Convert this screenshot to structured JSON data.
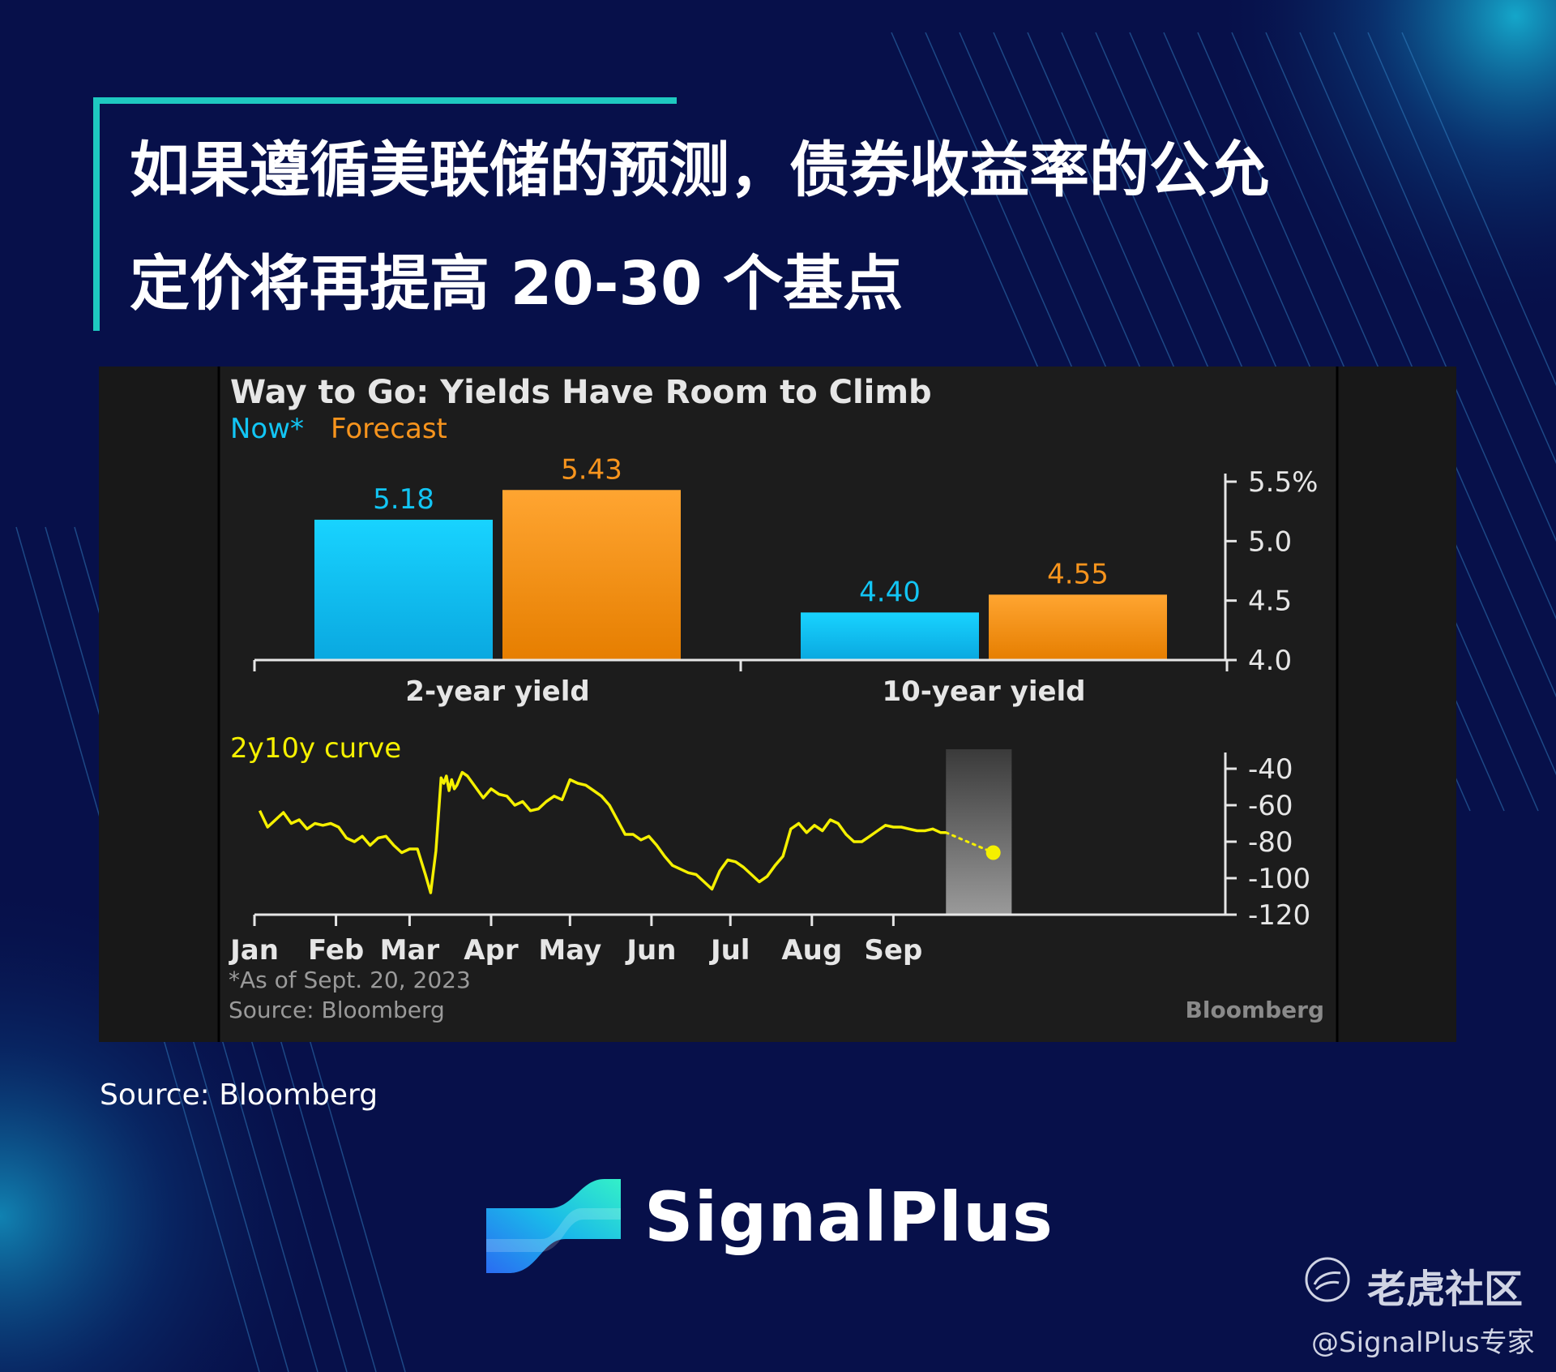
{
  "headline": {
    "line1": "如果遵循美联储的预测，债券收益率的公允",
    "line2": "定价将再提高 20-30 个基点"
  },
  "chart_data": [
    {
      "type": "bar",
      "title": "Way to Go: Yields Have Room to Climb",
      "categories": [
        "2-year yield",
        "10-year yield"
      ],
      "series": [
        {
          "name": "Now*",
          "values": [
            5.18,
            4.4
          ],
          "color": "#12c5f4"
        },
        {
          "name": "Forecast",
          "values": [
            5.43,
            4.55
          ],
          "color": "#f7941d"
        }
      ],
      "value_labels": [
        [
          "5.18",
          "4.40"
        ],
        [
          "5.43",
          "4.55"
        ]
      ],
      "ylim": [
        4.0,
        5.5
      ],
      "yticks": [
        4.0,
        4.5,
        5.0,
        5.5
      ],
      "ytick_labels": [
        "4.0",
        "4.5",
        "5.0",
        "5.5%"
      ],
      "axis_side": "right"
    },
    {
      "type": "line",
      "title": "2y10y curve",
      "color": "#f5f000",
      "xlim_days": [
        0,
        365
      ],
      "ylim": [
        -120,
        -40
      ],
      "yticks": [
        -40,
        -60,
        -80,
        -100,
        -120
      ],
      "ytick_labels": [
        "-40",
        "-60",
        "-80",
        "-100",
        "-120"
      ],
      "month_labels": [
        "Jan",
        "Feb",
        "Mar",
        "Apr",
        "May",
        "Jun",
        "Jul",
        "Aug",
        "Sep"
      ],
      "month_days": [
        0,
        31,
        59,
        90,
        120,
        151,
        181,
        212,
        243
      ],
      "series": [
        {
          "x_day": [
            2,
            5,
            8,
            11,
            14,
            17,
            20,
            23,
            26,
            29,
            32,
            35,
            38,
            41,
            44,
            47,
            50,
            53,
            56,
            59,
            62,
            65,
            67,
            69,
            71,
            72,
            73,
            74,
            75,
            76,
            77,
            79,
            81,
            83,
            85,
            87,
            90,
            93,
            96,
            99,
            102,
            105,
            108,
            111,
            114,
            117,
            120,
            123,
            126,
            129,
            132,
            135,
            138,
            141,
            144,
            147,
            150,
            153,
            156,
            159,
            162,
            165,
            168,
            171,
            174,
            177,
            180,
            183,
            186,
            189,
            192,
            195,
            198,
            201,
            204,
            207,
            210,
            213,
            216,
            219,
            222,
            225,
            228,
            231,
            234,
            237,
            240,
            243,
            246,
            249,
            252,
            255,
            258,
            261,
            263
          ],
          "y": [
            -63,
            -72,
            -68,
            -64,
            -70,
            -68,
            -73,
            -70,
            -71,
            -70,
            -72,
            -78,
            -80,
            -77,
            -82,
            -78,
            -77,
            -82,
            -86,
            -84,
            -84,
            -98,
            -108,
            -85,
            -45,
            -48,
            -44,
            -52,
            -46,
            -51,
            -49,
            -42,
            -44,
            -48,
            -52,
            -56,
            -51,
            -54,
            -55,
            -60,
            -58,
            -63,
            -62,
            -58,
            -55,
            -57,
            -46,
            -48,
            -49,
            -52,
            -55,
            -60,
            -68,
            -76,
            -76,
            -79,
            -77,
            -82,
            -88,
            -93,
            -95,
            -97,
            -98,
            -102,
            -106,
            -96,
            -90,
            -91,
            -94,
            -98,
            -102,
            -99,
            -93,
            -88,
            -73,
            -70,
            -75,
            -71,
            -74,
            -68,
            -70,
            -76,
            -80,
            -80,
            -77,
            -74,
            -71,
            -72,
            -72,
            -73,
            -74,
            -74,
            -73,
            -75,
            -75
          ]
        }
      ],
      "forecast": {
        "from": [
          263,
          -75
        ],
        "to": [
          281,
          -86
        ],
        "color": "#f5f000"
      },
      "shaded_region_days": [
        263,
        288
      ]
    }
  ],
  "chart_text": {
    "legend_now": "Now*",
    "legend_forecast": "Forecast",
    "curve_label": "2y10y curve",
    "note": "*As of Sept. 20, 2023",
    "source": "Source: Bloomberg",
    "brand": "Bloomberg"
  },
  "footer": {
    "source": "Source: Bloomberg",
    "brand_name": "SignalPlus",
    "tiger_community": "老虎社区",
    "handle": "@SignalPlus专家"
  },
  "colors": {
    "background": "#07104a",
    "accent": "#1ec9c0",
    "panel": "#181818",
    "now": "#12c5f4",
    "forecast": "#f7941d",
    "curve": "#f5f000"
  }
}
